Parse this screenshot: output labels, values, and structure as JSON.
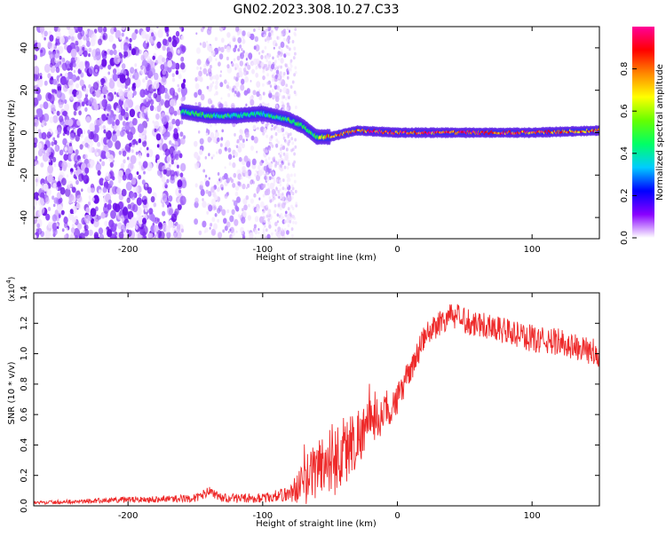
{
  "page_title": "GN02.2023.308.10.27.C33",
  "colors": {
    "snr_line": "#ee2a2a",
    "axis": "#000000",
    "scatter_palette": [
      "#f3e6ff",
      "#d9b8ff",
      "#b07cff",
      "#8a3cf6",
      "#6a10e8"
    ],
    "colorbar_stops": [
      "#ffffff",
      "#8800ff",
      "#0000ff",
      "#00ccff",
      "#00ff66",
      "#66ff00",
      "#ffff00",
      "#ff8800",
      "#ff0000",
      "#ff0099"
    ]
  },
  "chart_data": [
    {
      "type": "heatmap",
      "title": "GN02.2023.308.10.27.C33",
      "xlabel": "Height of straight line (km)",
      "ylabel": "Frequency (Hz)",
      "xlim": [
        -270,
        150
      ],
      "ylim": [
        -50,
        50
      ],
      "xticks": [
        -200,
        -100,
        0,
        100
      ],
      "yticks": [
        -40,
        -20,
        0,
        20,
        40
      ],
      "colorbar": {
        "label": "Normalized spectral amplitude",
        "range": [
          0,
          1
        ],
        "ticks": [
          "0.0",
          "0.2",
          "0.4",
          "0.6",
          "0.8"
        ]
      },
      "noise_regions": [
        {
          "x": [
            -270,
            -158
          ],
          "density": "high",
          "amplitude": "0.05-0.2"
        },
        {
          "x": [
            -150,
            -80
          ],
          "density": "medium",
          "amplitude": "0.02-0.15"
        }
      ],
      "signal_trace": {
        "points": [
          {
            "x": -160,
            "y": 10,
            "amplitude": 0.5
          },
          {
            "x": -140,
            "y": 8,
            "amplitude": 0.5
          },
          {
            "x": -120,
            "y": 8,
            "amplitude": 0.45
          },
          {
            "x": -100,
            "y": 9,
            "amplitude": 0.45
          },
          {
            "x": -80,
            "y": 6,
            "amplitude": 0.5
          },
          {
            "x": -70,
            "y": 3,
            "amplitude": 0.55
          },
          {
            "x": -60,
            "y": -2,
            "amplitude": 0.5
          },
          {
            "x": -50,
            "y": -2,
            "amplitude": 0.85
          },
          {
            "x": -30,
            "y": 1,
            "amplitude": 0.9
          },
          {
            "x": 0,
            "y": 0,
            "amplitude": 0.95
          },
          {
            "x": 50,
            "y": 0,
            "amplitude": 0.95
          },
          {
            "x": 100,
            "y": 0,
            "amplitude": 0.95
          },
          {
            "x": 150,
            "y": 1,
            "amplitude": 0.85
          }
        ]
      }
    },
    {
      "type": "line",
      "xlabel": "Height of straight line (km)",
      "ylabel": "SNR (10 * v/v)",
      "y_multiplier": "(x10",
      "y_multiplier_exp": "4",
      "y_multiplier_close": ")",
      "xlim": [
        -270,
        150
      ],
      "ylim": [
        0,
        14000
      ],
      "xticks": [
        -200,
        -100,
        0,
        100
      ],
      "yticks": [
        "0.0",
        "0.2",
        "0.4",
        "0.6",
        "0.8",
        "1.0",
        "1.2",
        "1.4"
      ],
      "series": [
        {
          "x": [
            -270,
            -200,
            -150,
            -140,
            -130,
            -100,
            -80,
            -70,
            -60,
            -50,
            -40,
            -30,
            -20,
            -10,
            0,
            10,
            20,
            30,
            40,
            50,
            60,
            70,
            80,
            90,
            100,
            110,
            120,
            130,
            140,
            150
          ],
          "y": [
            200,
            400,
            500,
            900,
            500,
            500,
            800,
            1500,
            2500,
            3000,
            3500,
            4500,
            5500,
            6000,
            7000,
            9000,
            11000,
            12000,
            12500,
            12200,
            12000,
            11800,
            11500,
            11200,
            11000,
            10800,
            10800,
            10500,
            10200,
            10000
          ],
          "noise": [
            100,
            200,
            250,
            400,
            300,
            300,
            500,
            1500,
            2000,
            2500,
            2500,
            2000,
            1500,
            1200,
            1000,
            900,
            900,
            900,
            900,
            900,
            900,
            900,
            900,
            900,
            900,
            900,
            900,
            900,
            900,
            900
          ]
        }
      ]
    }
  ]
}
